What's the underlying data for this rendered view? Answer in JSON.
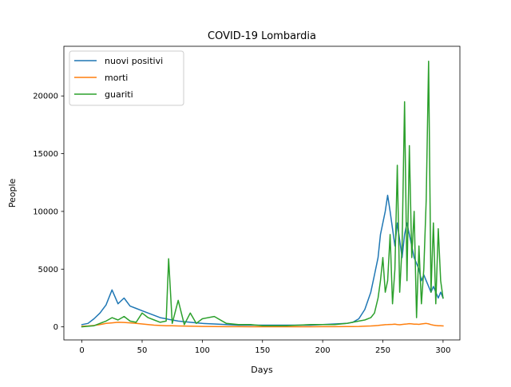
{
  "chart_data": {
    "type": "line",
    "title": "COVID-19 Lombardia",
    "xlabel": "Days",
    "ylabel": "People",
    "xlim": [
      -15,
      314
    ],
    "ylim": [
      -1130,
      24300
    ],
    "x_ticks": [
      0,
      50,
      100,
      150,
      200,
      250,
      300
    ],
    "y_ticks": [
      0,
      5000,
      10000,
      15000,
      20000
    ],
    "grid": false,
    "legend_position": "top-left",
    "x": [
      0,
      5,
      10,
      15,
      20,
      25,
      30,
      35,
      40,
      45,
      50,
      55,
      60,
      65,
      70,
      72,
      75,
      80,
      85,
      90,
      95,
      100,
      110,
      120,
      130,
      140,
      150,
      160,
      170,
      180,
      190,
      200,
      210,
      220,
      225,
      230,
      235,
      240,
      243,
      246,
      248,
      250,
      252,
      254,
      256,
      258,
      260,
      262,
      264,
      266,
      268,
      270,
      272,
      274,
      276,
      278,
      280,
      282,
      284,
      286,
      288,
      290,
      292,
      294,
      296,
      298,
      300
    ],
    "series": [
      {
        "name": "nuovi positivi",
        "color": "#1f77b4",
        "values": [
          200,
          300,
          700,
          1200,
          1900,
          3200,
          2000,
          2500,
          1800,
          1600,
          1400,
          1200,
          1000,
          800,
          700,
          650,
          600,
          500,
          450,
          400,
          350,
          300,
          250,
          200,
          150,
          150,
          150,
          150,
          150,
          150,
          150,
          200,
          250,
          300,
          400,
          700,
          1500,
          3000,
          4500,
          6000,
          8000,
          9000,
          10000,
          11400,
          10000,
          8500,
          7000,
          9000,
          7500,
          6000,
          8000,
          9000,
          8000,
          7000,
          6000,
          5500,
          5000,
          4000,
          4500,
          4000,
          3500,
          3000,
          3500,
          3000,
          2500,
          3000,
          2500
        ]
      },
      {
        "name": "morti",
        "color": "#ff7f0e",
        "values": [
          50,
          80,
          120,
          200,
          300,
          350,
          400,
          380,
          350,
          300,
          250,
          200,
          150,
          120,
          100,
          100,
          90,
          80,
          70,
          60,
          50,
          40,
          30,
          20,
          15,
          10,
          10,
          10,
          10,
          10,
          10,
          15,
          20,
          25,
          30,
          40,
          60,
          80,
          100,
          120,
          150,
          170,
          190,
          200,
          210,
          220,
          230,
          200,
          180,
          210,
          230,
          250,
          280,
          260,
          240,
          230,
          220,
          250,
          280,
          300,
          260,
          200,
          150,
          120,
          100,
          90,
          80
        ]
      },
      {
        "name": "guariti",
        "color": "#2ca02c",
        "values": [
          0,
          50,
          100,
          300,
          500,
          800,
          600,
          900,
          500,
          400,
          1200,
          800,
          600,
          400,
          500,
          5900,
          300,
          2300,
          200,
          1200,
          300,
          700,
          900,
          300,
          200,
          200,
          100,
          100,
          100,
          150,
          200,
          200,
          200,
          300,
          400,
          500,
          600,
          800,
          1200,
          2500,
          4000,
          6000,
          3000,
          4000,
          8000,
          2000,
          5000,
          14000,
          3000,
          7000,
          19500,
          4000,
          15700,
          6000,
          10000,
          800,
          7000,
          2000,
          5000,
          11000,
          23000,
          3000,
          9000,
          2000,
          8500,
          4000,
          2500
        ]
      }
    ]
  }
}
